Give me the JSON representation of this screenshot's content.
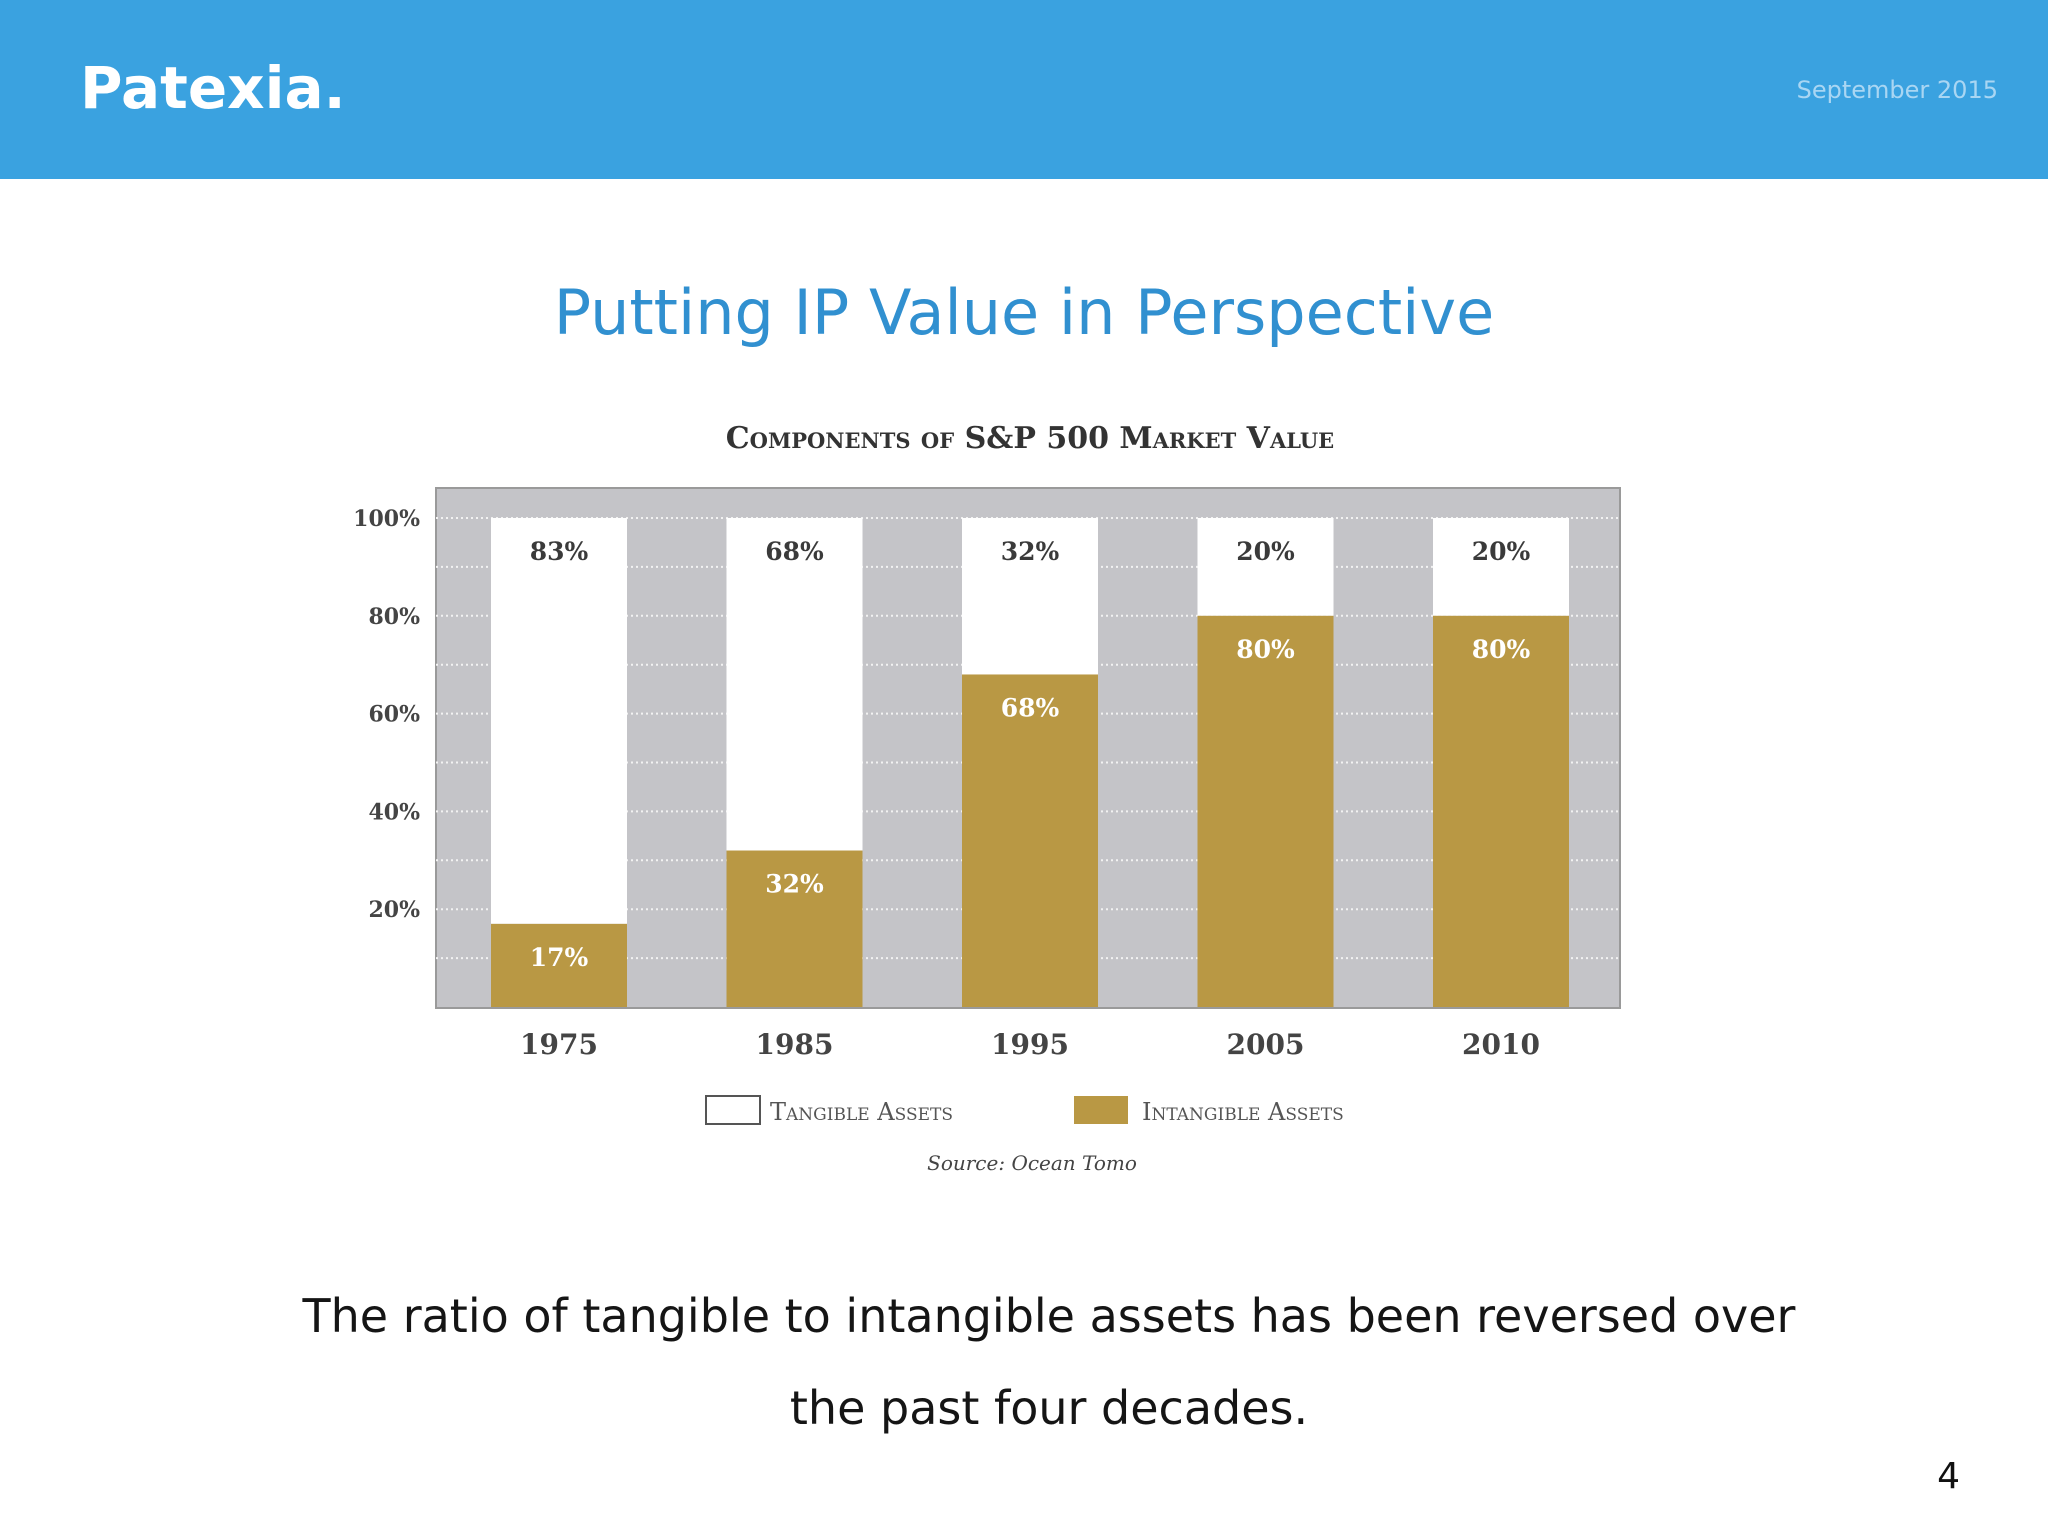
{
  "header": {
    "brand": "Patexia.",
    "date": "September 2015"
  },
  "slide": {
    "title": "Putting IP Value in Perspective",
    "caption_line1": "The ratio of tangible to intangible assets has been reversed over",
    "caption_line2": "the past four decades.",
    "page_number": "4"
  },
  "colors": {
    "header_bg": "#3aa2e0",
    "tangible": "#ffffff",
    "intangible": "#b99844",
    "plot_bg": "#c4c4c8",
    "title_blue": "#3190d0"
  },
  "chart_data": {
    "type": "bar",
    "stacked": true,
    "title": "Components of S&P 500 Market Value",
    "source": "Source: Ocean Tomo",
    "categories": [
      "1975",
      "1985",
      "1995",
      "2005",
      "2010"
    ],
    "series": [
      {
        "name": "Intangible Assets",
        "values": [
          17,
          32,
          68,
          80,
          80
        ],
        "labels": [
          "17%",
          "32%",
          "68%",
          "80%",
          "80%"
        ],
        "color": "#b99844"
      },
      {
        "name": "Tangible Assets",
        "values": [
          83,
          68,
          32,
          20,
          20
        ],
        "labels": [
          "83%",
          "68%",
          "32%",
          "20%",
          "20%"
        ],
        "color": "#ffffff"
      }
    ],
    "y_ticks": [
      {
        "value": 20,
        "label": "20%"
      },
      {
        "value": 40,
        "label": "40%"
      },
      {
        "value": 60,
        "label": "60%"
      },
      {
        "value": 80,
        "label": "80%"
      },
      {
        "value": 100,
        "label": "100%"
      }
    ],
    "ylim": [
      0,
      100
    ],
    "grid": true,
    "legend_position": "bottom"
  }
}
